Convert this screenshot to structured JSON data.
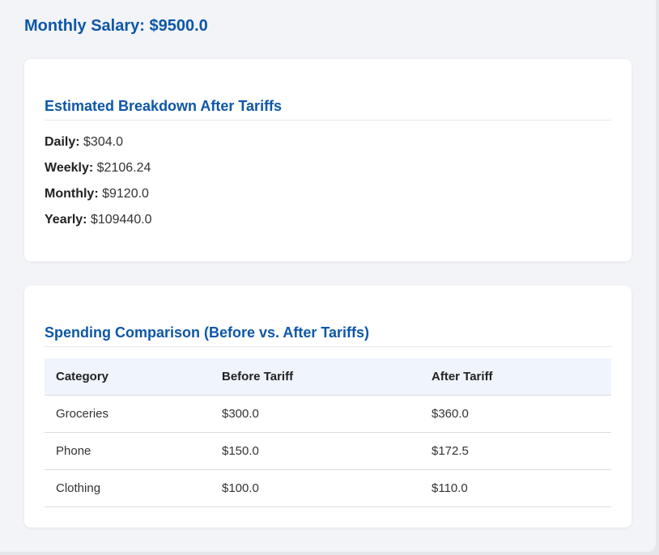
{
  "header": {
    "salary_label": "Monthly Salary: $9500.0"
  },
  "breakdown": {
    "heading": "Estimated Breakdown After Tariffs",
    "items": [
      {
        "label": "Daily:",
        "value": "$304.0"
      },
      {
        "label": "Weekly:",
        "value": "$2106.24"
      },
      {
        "label": "Monthly:",
        "value": "$9120.0"
      },
      {
        "label": "Yearly:",
        "value": "$109440.0"
      }
    ]
  },
  "spending": {
    "heading": "Spending Comparison (Before vs. After Tariffs)",
    "columns": [
      "Category",
      "Before Tariff",
      "After Tariff"
    ],
    "rows": [
      [
        "Groceries",
        "$300.0",
        "$360.0"
      ],
      [
        "Phone",
        "$150.0",
        "$172.5"
      ],
      [
        "Clothing",
        "$100.0",
        "$110.0"
      ]
    ]
  },
  "colors": {
    "accent": "#0d57a8",
    "table_header_bg": "#eff4fd",
    "page_bg": "#f3f4f8"
  }
}
